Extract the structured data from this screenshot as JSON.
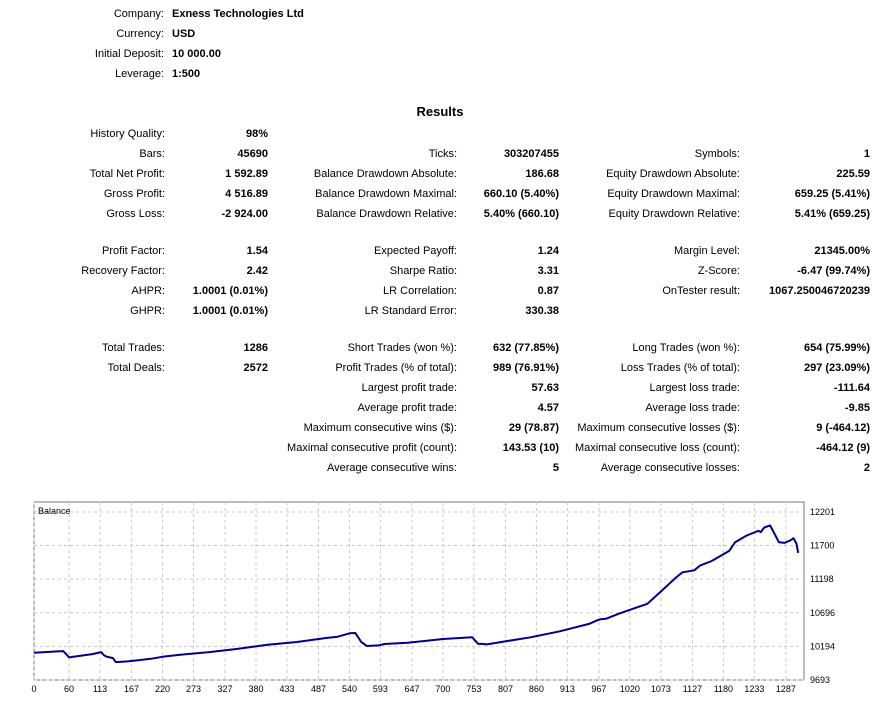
{
  "header": {
    "company_label": "Company:",
    "company": "Exness Technologies Ltd",
    "currency_label": "Currency:",
    "currency": "USD",
    "deposit_label": "Initial Deposit:",
    "deposit": "10 000.00",
    "leverage_label": "Leverage:",
    "leverage": "1:500"
  },
  "results_title": "Results",
  "col1": [
    {
      "label": "History Quality:",
      "value": "98%"
    },
    {
      "label": "Bars:",
      "value": "45690"
    },
    {
      "label": "Total Net Profit:",
      "value": "1 592.89"
    },
    {
      "label": "Gross Profit:",
      "value": "4 516.89"
    },
    {
      "label": "Gross Loss:",
      "value": "-2 924.00"
    },
    {
      "label": "Profit Factor:",
      "value": "1.54"
    },
    {
      "label": "Recovery Factor:",
      "value": "2.42"
    },
    {
      "label": "AHPR:",
      "value": "1.0001 (0.01%)"
    },
    {
      "label": "GHPR:",
      "value": "1.0001 (0.01%)"
    },
    {
      "label": "Total Trades:",
      "value": "1286"
    },
    {
      "label": "Total Deals:",
      "value": "2572"
    }
  ],
  "col2": [
    {
      "label": "Ticks:",
      "value": "303207455"
    },
    {
      "label": "Balance Drawdown Absolute:",
      "value": "186.68"
    },
    {
      "label": "Balance Drawdown Maximal:",
      "value": "660.10 (5.40%)"
    },
    {
      "label": "Balance Drawdown Relative:",
      "value": "5.40% (660.10)"
    },
    {
      "label": "Expected Payoff:",
      "value": "1.24"
    },
    {
      "label": "Sharpe Ratio:",
      "value": "3.31"
    },
    {
      "label": "LR Correlation:",
      "value": "0.87"
    },
    {
      "label": "LR Standard Error:",
      "value": "330.38"
    },
    {
      "label": "Short Trades (won %):",
      "value": "632 (77.85%)"
    },
    {
      "label": "Profit Trades (% of total):",
      "value": "989 (76.91%)"
    },
    {
      "label": "Largest profit trade:",
      "value": "57.63"
    },
    {
      "label": "Average profit trade:",
      "value": "4.57"
    },
    {
      "label": "Maximum consecutive wins ($):",
      "value": "29 (78.87)"
    },
    {
      "label": "Maximal consecutive profit (count):",
      "value": "143.53 (10)"
    },
    {
      "label": "Average consecutive wins:",
      "value": "5"
    }
  ],
  "col3": [
    {
      "label": "Symbols:",
      "value": "1"
    },
    {
      "label": "Equity Drawdown Absolute:",
      "value": "225.59"
    },
    {
      "label": "Equity Drawdown Maximal:",
      "value": "659.25 (5.41%)"
    },
    {
      "label": "Equity Drawdown Relative:",
      "value": "5.41% (659.25)"
    },
    {
      "label": "Margin Level:",
      "value": "21345.00%"
    },
    {
      "label": "Z-Score:",
      "value": "-6.47 (99.74%)"
    },
    {
      "label": "OnTester result:",
      "value": "1067.250046720239"
    },
    {
      "label": "Long Trades (won %):",
      "value": "654 (75.99%)"
    },
    {
      "label": "Loss Trades (% of total):",
      "value": "297 (23.09%)"
    },
    {
      "label": "Largest loss trade:",
      "value": "-111.64"
    },
    {
      "label": "Average loss trade:",
      "value": "-9.85"
    },
    {
      "label": "Maximum consecutive losses ($):",
      "value": "9 (-464.12)"
    },
    {
      "label": "Maximal consecutive loss (count):",
      "value": "-464.12 (9)"
    },
    {
      "label": "Average consecutive losses:",
      "value": "2"
    }
  ],
  "chart_data": {
    "type": "line",
    "title": "Balance",
    "line_color": "#00008b",
    "x_ticks": [
      "0",
      "60",
      "113",
      "167",
      "220",
      "273",
      "327",
      "380",
      "433",
      "487",
      "540",
      "593",
      "647",
      "700",
      "753",
      "807",
      "860",
      "913",
      "967",
      "1020",
      "1073",
      "1127",
      "1180",
      "1233",
      "1287"
    ],
    "y_ticks": [
      "12201",
      "11700",
      "11198",
      "10696",
      "10194",
      "9693"
    ],
    "xlim": [
      0,
      1318
    ],
    "ylim": [
      9693,
      12350
    ],
    "grid": true,
    "series": [
      {
        "x": [
          0,
          40,
          50,
          55,
          60,
          75,
          100,
          115,
          120,
          125,
          130,
          135,
          140,
          160,
          180,
          200,
          220,
          250,
          300,
          350,
          400,
          450,
          500,
          520,
          540,
          550,
          555,
          560,
          570,
          590,
          600,
          640,
          680,
          700,
          750,
          760,
          770,
          775,
          800,
          850,
          900,
          950,
          963,
          970,
          980,
          1000,
          1050,
          1070,
          1100,
          1110,
          1130,
          1140,
          1160,
          1190,
          1200,
          1220,
          1240,
          1244,
          1250,
          1260,
          1275,
          1285,
          1295,
          1300,
          1305,
          1308
        ],
        "y": [
          10100,
          10120,
          10125,
          10080,
          10030,
          10050,
          10080,
          10110,
          10060,
          10040,
          10030,
          10020,
          9960,
          9970,
          9990,
          10010,
          10040,
          10070,
          10110,
          10160,
          10220,
          10260,
          10320,
          10340,
          10390,
          10395,
          10330,
          10260,
          10200,
          10210,
          10230,
          10250,
          10285,
          10305,
          10330,
          10235,
          10230,
          10225,
          10260,
          10330,
          10420,
          10530,
          10580,
          10600,
          10610,
          10680,
          10830,
          10990,
          11230,
          11300,
          11330,
          11400,
          11470,
          11620,
          11750,
          11850,
          11920,
          11900,
          11970,
          12000,
          11750,
          11740,
          11780,
          11810,
          11730,
          11590
        ]
      }
    ]
  }
}
